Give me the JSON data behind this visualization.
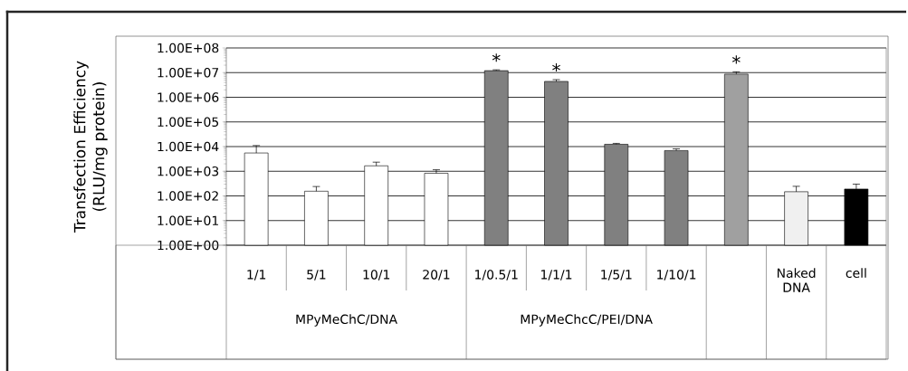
{
  "chart_data": {
    "type": "bar",
    "ylabel": "Transfection Efficiency (RLU/mg protein)",
    "categories": [
      "1/1",
      "5/1",
      "10/1",
      "20/1",
      "1/0.5/1",
      "1/1/1",
      "1/5/1",
      "1/10/1",
      null,
      "Naked DNA",
      "cell"
    ],
    "values": [
      5500,
      155,
      1660,
      830,
      12000000,
      4400000,
      12400,
      6900,
      8700000,
      148,
      190
    ],
    "errors": [
      [
        5500,
        11000
      ],
      [
        155,
        240
      ],
      [
        1660,
        2340
      ],
      [
        830,
        1150
      ],
      [
        12000000,
        13000000
      ],
      [
        4400000,
        5200000
      ],
      [
        12400,
        13500
      ],
      [
        6900,
        8100
      ],
      [
        8700000,
        10800000
      ],
      [
        148,
        245
      ],
      [
        190,
        300
      ]
    ],
    "colors": [
      "#ffffff",
      "#ffffff",
      "#ffffff",
      "#ffffff",
      "#808080",
      "#808080",
      "#808080",
      "#808080",
      "#a0a0a0",
      "#f0f0f0",
      "#000000"
    ],
    "value_labels": [
      null,
      null,
      null,
      null,
      "*",
      "*",
      null,
      null,
      "*",
      null,
      null
    ],
    "log": "y",
    "ylim": [
      1,
      100000000
    ],
    "yticks": [
      {
        "value": 1,
        "label": "1.00E+00"
      },
      {
        "value": 10,
        "label": "1.00E+01"
      },
      {
        "value": 100,
        "label": "1.00E+02"
      },
      {
        "value": 1000,
        "label": "1.00E+03"
      },
      {
        "value": 10000,
        "label": "1.00E+04"
      },
      {
        "value": 100000,
        "label": "1.00E+05"
      },
      {
        "value": 1000000,
        "label": "1.00E+06"
      },
      {
        "value": 10000000,
        "label": "1.00E+07"
      },
      {
        "value": 100000000,
        "label": "1.00E+08"
      }
    ],
    "grid": "y",
    "annotations": [
      "MPyMeChC/DNA",
      "MPyMeChcC/PEI/DNA"
    ]
  }
}
